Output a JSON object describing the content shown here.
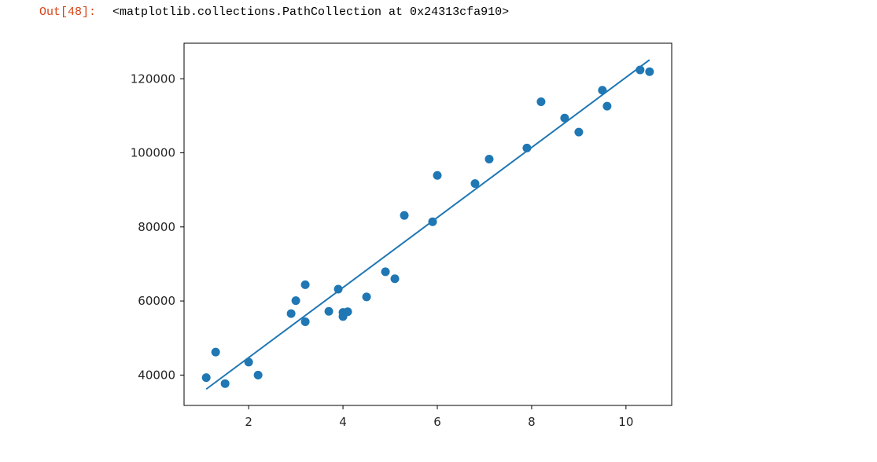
{
  "cell": {
    "prompt": "Out[48]:",
    "output_text": "<matplotlib.collections.PathCollection at 0x24313cfa910>"
  },
  "chart_data": {
    "type": "scatter",
    "title": "",
    "xlabel": "",
    "ylabel": "",
    "xlim": [
      0.63,
      10.97
    ],
    "ylim": [
      31800,
      129600
    ],
    "xticks": [
      2,
      4,
      6,
      8,
      10
    ],
    "yticks": [
      40000,
      60000,
      80000,
      100000,
      120000
    ],
    "grid": false,
    "point_color": "#1f77b4",
    "line_color": "#1f77b4",
    "points": [
      {
        "x": 1.1,
        "y": 39300
      },
      {
        "x": 1.3,
        "y": 46200
      },
      {
        "x": 1.5,
        "y": 37700
      },
      {
        "x": 2.0,
        "y": 43500
      },
      {
        "x": 2.2,
        "y": 40000
      },
      {
        "x": 2.9,
        "y": 56600
      },
      {
        "x": 3.0,
        "y": 60100
      },
      {
        "x": 3.2,
        "y": 54400
      },
      {
        "x": 3.2,
        "y": 64400
      },
      {
        "x": 3.7,
        "y": 57200
      },
      {
        "x": 3.9,
        "y": 63200
      },
      {
        "x": 4.0,
        "y": 55800
      },
      {
        "x": 4.0,
        "y": 56900
      },
      {
        "x": 4.1,
        "y": 57100
      },
      {
        "x": 4.5,
        "y": 61100
      },
      {
        "x": 4.9,
        "y": 67900
      },
      {
        "x": 5.1,
        "y": 66000
      },
      {
        "x": 5.3,
        "y": 83100
      },
      {
        "x": 5.9,
        "y": 81400
      },
      {
        "x": 6.0,
        "y": 93900
      },
      {
        "x": 6.8,
        "y": 91700
      },
      {
        "x": 7.1,
        "y": 98300
      },
      {
        "x": 7.9,
        "y": 101300
      },
      {
        "x": 8.2,
        "y": 113800
      },
      {
        "x": 8.7,
        "y": 109400
      },
      {
        "x": 9.0,
        "y": 105600
      },
      {
        "x": 9.5,
        "y": 116900
      },
      {
        "x": 9.6,
        "y": 112600
      },
      {
        "x": 10.3,
        "y": 122400
      },
      {
        "x": 10.5,
        "y": 121900
      }
    ],
    "fit_line": {
      "x": [
        1.1,
        10.5
      ],
      "y": [
        36200,
        125100
      ]
    }
  }
}
